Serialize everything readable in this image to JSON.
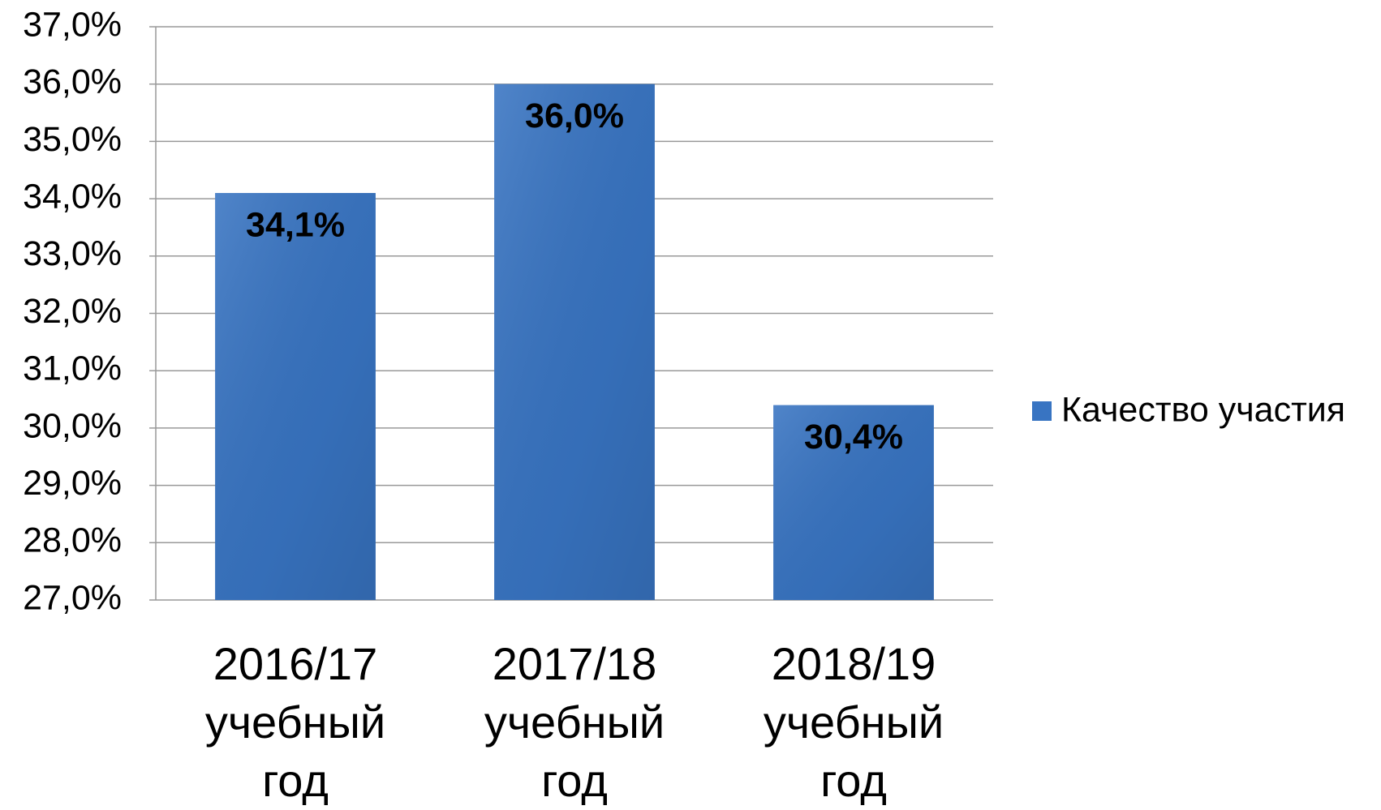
{
  "chart_data": {
    "type": "bar",
    "categories": [
      "2016/17 учебный год",
      "2017/18 учебный год",
      "2018/19 учебный год"
    ],
    "series": [
      {
        "name": "Качество участия",
        "color": "#3874c2",
        "values": [
          34.1,
          36.0,
          30.4
        ],
        "value_labels": [
          "34,1%",
          "36,0%",
          "30,4%"
        ]
      }
    ],
    "ylim": [
      27,
      37
    ],
    "yticks": [
      {
        "value": 27,
        "label": "27,0%"
      },
      {
        "value": 28,
        "label": "28,0%"
      },
      {
        "value": 29,
        "label": "29,0%"
      },
      {
        "value": 30,
        "label": "30,0%"
      },
      {
        "value": 31,
        "label": "31,0%"
      },
      {
        "value": 32,
        "label": "32,0%"
      },
      {
        "value": 33,
        "label": "33,0%"
      },
      {
        "value": 34,
        "label": "34,0%"
      },
      {
        "value": 35,
        "label": "35,0%"
      },
      {
        "value": 36,
        "label": "36,0%"
      },
      {
        "value": 37,
        "label": "37,0%"
      }
    ],
    "grid": true,
    "legend": "right"
  }
}
